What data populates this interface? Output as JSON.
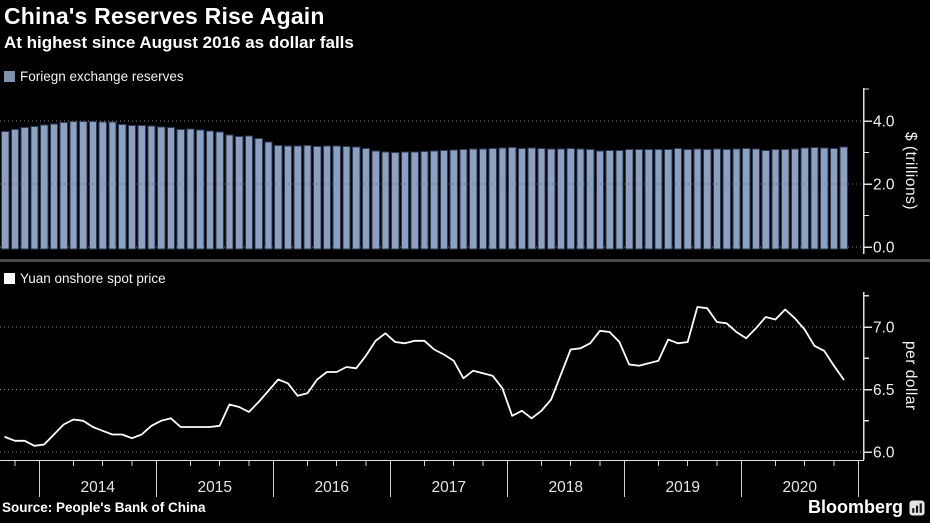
{
  "header": {
    "title": "China's Reserves Rise Again",
    "subtitle": "At highest since August 2016 as dollar falls"
  },
  "footer": {
    "source": "Source: People's Bank of China",
    "brand": "Bloomberg"
  },
  "colors": {
    "background": "#000000",
    "bar_fill": "#8ca1bf",
    "bar_edge": "#2b3b59",
    "line": "#ffffff",
    "axis": "#e0e0e0",
    "grid": "#8a8a8a",
    "divider": "#4a4a4a",
    "tick_text": "#f0f0f0",
    "year_text": "#e6e6e6"
  },
  "xaxis": {
    "start_month": "2013-09",
    "end_month": "2020-11",
    "freq": "monthly",
    "year_labels": [
      "2014",
      "2015",
      "2016",
      "2017",
      "2018",
      "2019",
      "2020"
    ]
  },
  "chart_data": [
    {
      "type": "bar",
      "legend": "Foriegn exchange reserves",
      "ylabel": "$ (trillions)",
      "swatch_color": "#7e91af",
      "ylim": [
        0,
        5
      ],
      "yticks": {
        "major": [
          {
            "v": 0.0,
            "label": "0.0"
          },
          {
            "v": 2.0,
            "label": "2.0"
          },
          {
            "v": 4.0,
            "label": "4.0"
          }
        ],
        "minor": [
          1.0,
          3.0
        ]
      },
      "values": [
        3.66,
        3.73,
        3.79,
        3.82,
        3.87,
        3.91,
        3.95,
        3.98,
        3.99,
        3.99,
        3.97,
        3.97,
        3.89,
        3.85,
        3.85,
        3.84,
        3.81,
        3.8,
        3.73,
        3.75,
        3.71,
        3.69,
        3.65,
        3.56,
        3.51,
        3.53,
        3.44,
        3.33,
        3.23,
        3.2,
        3.21,
        3.22,
        3.19,
        3.21,
        3.2,
        3.19,
        3.17,
        3.12,
        3.05,
        3.01,
        3.0,
        3.01,
        3.01,
        3.03,
        3.05,
        3.06,
        3.08,
        3.09,
        3.11,
        3.11,
        3.12,
        3.14,
        3.16,
        3.13,
        3.14,
        3.12,
        3.11,
        3.11,
        3.12,
        3.11,
        3.09,
        3.05,
        3.06,
        3.07,
        3.09,
        3.09,
        3.1,
        3.09,
        3.1,
        3.12,
        3.1,
        3.11,
        3.09,
        3.11,
        3.1,
        3.11,
        3.12,
        3.11,
        3.06,
        3.09,
        3.1,
        3.11,
        3.15,
        3.16,
        3.14,
        3.13,
        3.18
      ]
    },
    {
      "type": "line",
      "legend": "Yuan onshore spot price",
      "ylabel": "per dollar",
      "swatch_color": "#ffffff",
      "ylim": [
        5.93,
        7.28
      ],
      "yticks": {
        "major": [
          {
            "v": 6.0,
            "label": "6.0"
          },
          {
            "v": 6.5,
            "label": "6.5"
          },
          {
            "v": 7.0,
            "label": "7.0"
          }
        ],
        "minor": [
          6.25,
          6.75,
          7.25
        ]
      },
      "values": [
        6.12,
        6.09,
        6.09,
        6.05,
        6.06,
        6.14,
        6.22,
        6.26,
        6.25,
        6.2,
        6.17,
        6.14,
        6.14,
        6.11,
        6.14,
        6.21,
        6.25,
        6.27,
        6.2,
        6.2,
        6.2,
        6.2,
        6.21,
        6.38,
        6.36,
        6.32,
        6.4,
        6.49,
        6.58,
        6.55,
        6.45,
        6.47,
        6.58,
        6.64,
        6.64,
        6.68,
        6.67,
        6.77,
        6.89,
        6.95,
        6.88,
        6.87,
        6.89,
        6.89,
        6.82,
        6.78,
        6.73,
        6.59,
        6.65,
        6.63,
        6.61,
        6.51,
        6.29,
        6.33,
        6.27,
        6.33,
        6.42,
        6.62,
        6.82,
        6.83,
        6.87,
        6.97,
        6.96,
        6.88,
        6.7,
        6.69,
        6.71,
        6.73,
        6.9,
        6.87,
        6.88,
        7.16,
        7.15,
        7.04,
        7.03,
        6.96,
        6.91,
        6.99,
        7.08,
        7.06,
        7.14,
        7.07,
        6.98,
        6.85,
        6.81,
        6.69,
        6.58
      ]
    }
  ]
}
